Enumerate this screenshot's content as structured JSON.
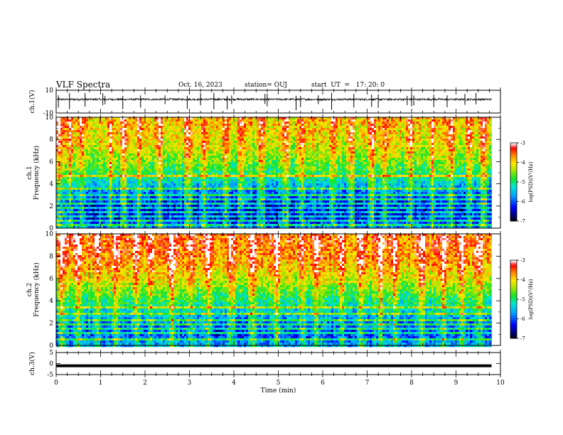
{
  "header": {
    "title": "VLF Spectra",
    "date": "Oct. 16, 2023",
    "station": "station= OUJ",
    "start": "start  UT  =   17: 20: 0"
  },
  "chart_data": [
    {
      "type": "line",
      "panel": "ch1-waveform",
      "ylabel": "ch.1(V)",
      "ylim": [
        -10,
        10
      ],
      "yticks": [
        "10",
        "-10"
      ],
      "xlim": [
        0,
        10
      ],
      "baseline": 2,
      "noise_amplitude": 0.9,
      "spikes_min": [
        0.0,
        0.05,
        0.3,
        0.65,
        1.05,
        1.1,
        1.5,
        1.9,
        2.45,
        2.95,
        3.25,
        3.55,
        3.85,
        3.95,
        4.7,
        4.75,
        5.4,
        5.5,
        5.9,
        6.2,
        6.7,
        7.1,
        7.25,
        7.9,
        8.0,
        8.05,
        8.5,
        8.8,
        9.2,
        9.45
      ]
    },
    {
      "type": "heatmap",
      "panel": "ch1-spectrogram",
      "ylabel": "ch.1\nFrequency  (kHz)",
      "xlim": [
        0,
        10
      ],
      "ylim": [
        0,
        10
      ],
      "yticks": [
        "0",
        "2",
        "4",
        "6",
        "8",
        "10"
      ],
      "data_extent_min": 9.8,
      "colorbar": {
        "label": "log(PSD)(V²/Hz)",
        "range": [
          -7,
          -3
        ],
        "ticks": [
          "-3",
          "-4",
          "-5",
          "-6",
          "-7"
        ]
      },
      "psd_profile": {
        "freq_khz": [
          0,
          1,
          2,
          3,
          4,
          5,
          6,
          7,
          8,
          9,
          10
        ],
        "log_psd": [
          -5.8,
          -6.4,
          -6.3,
          -6.0,
          -5.4,
          -4.9,
          -4.6,
          -4.3,
          -4.1,
          -4.0,
          -3.9
        ]
      },
      "tone_lines_khz": [
        0.3,
        0.6,
        1.0,
        1.5,
        1.75,
        2.2,
        2.6,
        3.05,
        3.5,
        4.75
      ],
      "bursts_min": [
        0.05,
        0.3,
        0.55,
        1.2,
        1.5,
        1.85,
        2.3,
        2.95,
        3.3,
        3.8,
        4.15,
        4.6,
        5.15,
        5.5,
        6.2,
        6.6,
        7.1,
        7.4,
        7.95,
        8.45,
        8.85,
        9.3,
        9.6
      ]
    },
    {
      "type": "heatmap",
      "panel": "ch2-spectrogram",
      "ylabel": "ch.2\nFrequency  (kHz)",
      "xlim": [
        0,
        10
      ],
      "ylim": [
        0,
        10
      ],
      "yticks": [
        "0",
        "2",
        "4",
        "6",
        "8",
        "10"
      ],
      "data_extent_min": 9.8,
      "colorbar": {
        "label": "log(PSD)(V²/Hz)",
        "range": [
          -7,
          -3
        ],
        "ticks": [
          "-3",
          "-4",
          "-5",
          "-6",
          "-7"
        ]
      },
      "psd_profile": {
        "freq_khz": [
          0,
          1,
          2,
          3,
          4,
          5,
          6,
          7,
          8,
          9,
          10
        ],
        "log_psd": [
          -5.6,
          -6.1,
          -5.9,
          -5.4,
          -5.0,
          -4.6,
          -4.2,
          -3.9,
          -3.7,
          -3.6,
          -3.6
        ]
      },
      "tone_lines_khz": [
        0.6,
        1.1,
        1.5,
        1.9,
        2.3,
        2.75,
        3.4
      ],
      "bursts_min": [
        0.1,
        0.45,
        0.9,
        1.3,
        1.75,
        2.1,
        2.6,
        3.0,
        3.4,
        3.9,
        4.4,
        4.95,
        5.5,
        5.85,
        6.4,
        6.85,
        7.3,
        7.6,
        8.2,
        8.7,
        9.1,
        9.5
      ]
    },
    {
      "type": "line",
      "panel": "ch3-waveform",
      "ylabel": "ch.3(V)",
      "ylim": [
        -5,
        5
      ],
      "yticks": [
        "5",
        "0",
        "-5"
      ],
      "xlim": [
        0,
        10
      ],
      "constant_value": -1,
      "xlabel": "Time  (min)",
      "xticks": [
        "0",
        "1",
        "2",
        "3",
        "4",
        "5",
        "6",
        "7",
        "8",
        "9",
        "10"
      ]
    }
  ]
}
